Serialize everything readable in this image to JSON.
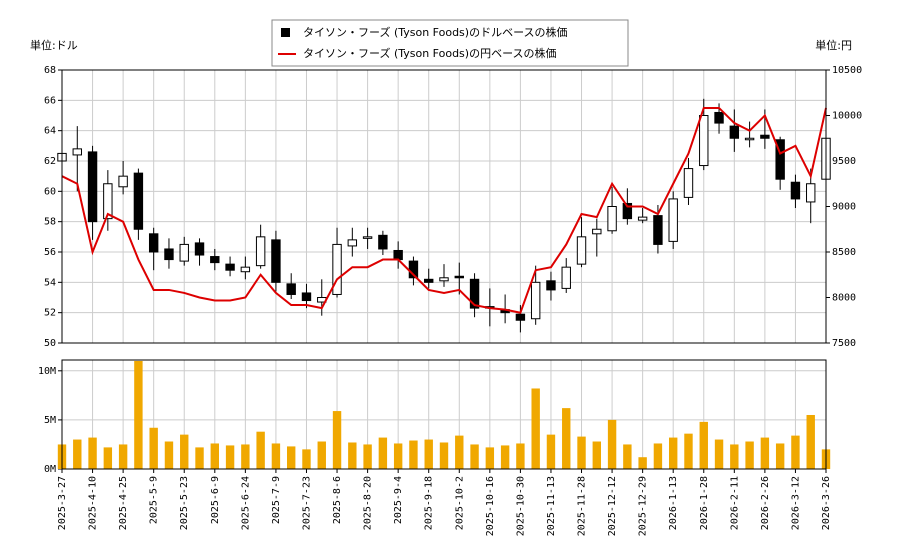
{
  "chart_data": {
    "type": "candlestick",
    "y_unit_label": "単位:ドル",
    "y2_unit_label": "単位:円",
    "grid": true,
    "categories": [
      "2025-3-27",
      null,
      "2025-4-10",
      null,
      "2025-4-25",
      null,
      "2025-5-9",
      null,
      "2025-5-23",
      null,
      "2025-6-9",
      null,
      "2025-6-24",
      null,
      "2025-7-9",
      null,
      "2025-7-23",
      null,
      "2025-8-6",
      null,
      "2025-8-20",
      null,
      "2025-9-4",
      null,
      "2025-9-18",
      null,
      "2025-10-2",
      null,
      "2025-10-16",
      null,
      "2025-10-30",
      null,
      "2025-11-13",
      null,
      "2025-11-28",
      null,
      "2025-12-12",
      null,
      "2025-12-29",
      null,
      "2026-1-13",
      null,
      "2026-1-28",
      null,
      "2026-2-11",
      null,
      "2026-2-26",
      null,
      "2026-3-12",
      null,
      "2026-3-26"
    ],
    "ylim": [
      50,
      68
    ],
    "yticks": [
      50,
      52,
      54,
      56,
      58,
      60,
      62,
      64,
      66,
      68
    ],
    "y2lim": [
      7500,
      10500
    ],
    "y2ticks": [
      7500,
      8000,
      8500,
      9000,
      9500,
      10000,
      10500
    ],
    "series": [
      {
        "name": "タイソン・フーズ (Tyson Foods)のドルベースの株価",
        "color": "#000000",
        "open": [
          62,
          62.4,
          62.6,
          58.2,
          60.3,
          61.2,
          57.2,
          56.2,
          55.4,
          56.6,
          55.7,
          55.2,
          54.7,
          55.1,
          56.8,
          53.9,
          53.3,
          52.7,
          53.2,
          56.4,
          56.9,
          57.1,
          56.1,
          55.4,
          54.2,
          54.1,
          54.4,
          54.2,
          52.4,
          52.2,
          51.9,
          51.6,
          54.1,
          53.6,
          55.2,
          57.2,
          57.4,
          59.2,
          58.1,
          58.4,
          56.7,
          59.6,
          61.7,
          65.2,
          64.3,
          63.4,
          63.7,
          63.4,
          60.6,
          59.3,
          60.8
        ],
        "high": [
          64.2,
          64.3,
          63.0,
          61.4,
          62,
          61.5,
          57.6,
          56.9,
          57.0,
          56.9,
          56.2,
          55.7,
          55.7,
          57.8,
          57.4,
          54.6,
          53.9,
          54.2,
          57.6,
          57.6,
          57.6,
          57.4,
          56.7,
          55.7,
          54.9,
          55.2,
          55.3,
          54.6,
          53.6,
          53.2,
          52.5,
          55.1,
          54.7,
          55.6,
          58.3,
          58.2,
          60.3,
          60.2,
          58.9,
          59.1,
          60.0,
          62.2,
          66.1,
          65.8,
          65.4,
          64.6,
          65.4,
          63.6,
          61.1,
          61.5,
          64.4
        ],
        "low": [
          61.2,
          60.0,
          56.8,
          57.4,
          59.8,
          56.8,
          54.8,
          54.9,
          55.1,
          55.1,
          54.8,
          54.4,
          54.2,
          54.9,
          53.4,
          52.9,
          52.3,
          51.8,
          53.0,
          55.7,
          56.2,
          55.8,
          54.9,
          53.8,
          53.6,
          53.7,
          53.2,
          51.7,
          51.1,
          51.3,
          50.7,
          51.2,
          52.8,
          53.3,
          55.0,
          55.7,
          57.2,
          57.8,
          57.9,
          55.9,
          56.2,
          59.1,
          61.4,
          63.8,
          62.6,
          62.9,
          62.8,
          60.1,
          58.9,
          57.9,
          60.5
        ],
        "close": [
          62.5,
          62.8,
          58,
          60.5,
          61,
          57.5,
          56,
          55.5,
          56.5,
          55.8,
          55.3,
          54.8,
          55,
          57,
          54,
          53.2,
          52.8,
          53,
          56.5,
          56.8,
          57,
          56.2,
          55.5,
          54.3,
          54,
          54.3,
          54.3,
          52.3,
          52.3,
          52,
          51.5,
          54,
          53.5,
          55,
          57,
          57.5,
          59,
          58.2,
          58.3,
          56.5,
          59.5,
          61.5,
          65,
          64.5,
          63.5,
          63.5,
          63.5,
          60.8,
          59.5,
          60.5,
          63.5
        ]
      },
      {
        "name": "タイソン・フーズ (Tyson Foods)の円ベースの株価",
        "color": "#dd0000",
        "axis": "y2",
        "values": [
          9333,
          9250,
          8500,
          8917,
          8833,
          8417,
          8083,
          8083,
          8050,
          8000,
          7967,
          7967,
          8000,
          8250,
          8050,
          7917,
          7917,
          7883,
          8200,
          8333,
          8333,
          8417,
          8417,
          8250,
          8083,
          8050,
          8083,
          7917,
          7883,
          7867,
          7833,
          8300,
          8333,
          8583,
          8917,
          8883,
          9250,
          9000,
          9000,
          8917,
          9250,
          9583,
          10083,
          10083,
          9917,
          9833,
          10000,
          9583,
          9667,
          9333,
          10083
        ]
      }
    ],
    "volume": {
      "color": "#f0a800",
      "ylim": [
        0,
        11100000
      ],
      "yticks": [
        {
          "value": 0,
          "label": "0M"
        },
        {
          "value": 5000000,
          "label": "5M"
        },
        {
          "value": 10000000,
          "label": "10M"
        }
      ],
      "values": [
        2500000,
        3000000,
        3200000,
        2200000,
        2500000,
        11000000,
        4200000,
        2800000,
        3500000,
        2200000,
        2600000,
        2400000,
        2500000,
        3800000,
        2600000,
        2300000,
        2000000,
        2800000,
        5900000,
        2700000,
        2500000,
        3200000,
        2600000,
        2900000,
        3000000,
        2700000,
        3400000,
        2500000,
        2200000,
        2400000,
        2600000,
        8200000,
        3500000,
        6200000,
        3300000,
        2800000,
        5000000,
        2500000,
        1200000,
        2600000,
        3200000,
        3600000,
        4800000,
        3000000,
        2500000,
        2800000,
        3200000,
        2600000,
        3400000,
        5500000,
        2000000
      ]
    }
  }
}
